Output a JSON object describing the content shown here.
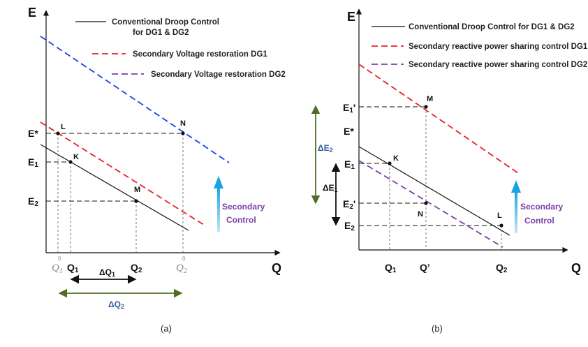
{
  "colors": {
    "conventional": "#111111",
    "dg1": "#e8202a",
    "dg2": "#7b3fa8",
    "restored_a": "#1f3fe6",
    "arrow_blue": "#1aa3e0",
    "secondary_text": "#7b3fa8",
    "delta_green": "#4d6e23",
    "delta_text": "#2f5f9e"
  },
  "panel_a": {
    "caption": "(a)",
    "axis_y": "E",
    "axis_x": "Q",
    "legend": {
      "conventional_line1": "Conventional Droop Control",
      "conventional_line2": "for DG1 & DG2",
      "dg1": "Secondary Voltage restoration DG1",
      "dg2": "Secondary Voltage restoration DG2"
    },
    "y_labels": {
      "estar": "E*",
      "e1_main": "E",
      "e1_sub": "1",
      "e2_main": "E",
      "e2_sub": "2"
    },
    "x_labels": {
      "q1_main": "Q",
      "q1_sub": "1",
      "q2_main": "Q",
      "q2_sub": "2",
      "q1_0_main": "Q",
      "q1_0_sub": "1",
      "q1_0_sup": "0",
      "q2_0_main": "Q",
      "q2_0_sub": "2",
      "q2_0_sup": "0"
    },
    "points": {
      "L": "L",
      "K": "K",
      "M": "M",
      "N": "N"
    },
    "secondary": {
      "line1": "Secondary",
      "line2": "Control"
    },
    "delta_q1": {
      "main": "ΔQ",
      "sub": "1"
    },
    "delta_q2": {
      "main": "ΔQ",
      "sub": "2"
    }
  },
  "panel_b": {
    "caption": "(b)",
    "axis_y": "E",
    "axis_x": "Q",
    "legend": {
      "conventional": "Conventional Droop Control for DG1 & DG2",
      "dg1": "Secondary reactive power sharing control DG1",
      "dg2": "Secondary reactive power sharing  control DG2"
    },
    "y_labels": {
      "e1p_main": "E",
      "e1p_sub": "1",
      "e1p_prime": "'",
      "estar": "E*",
      "e1_main": "E",
      "e1_sub": "1",
      "e2p_main": "E",
      "e2p_sub": "2",
      "e2p_prime": "'",
      "e2_main": "E",
      "e2_sub": "2"
    },
    "x_labels": {
      "q1_main": "Q",
      "q1_sub": "1",
      "qp": "Q’",
      "q2_main": "Q",
      "q2_sub": "2"
    },
    "points": {
      "M": "M",
      "K": "K",
      "N": "N",
      "L": "L"
    },
    "secondary": {
      "line1": "Secondary",
      "line2": "Control"
    },
    "delta_e2": {
      "main": "ΔE",
      "sub": "2"
    },
    "delta_e1": {
      "main": "ΔE",
      "sub": "1"
    }
  }
}
